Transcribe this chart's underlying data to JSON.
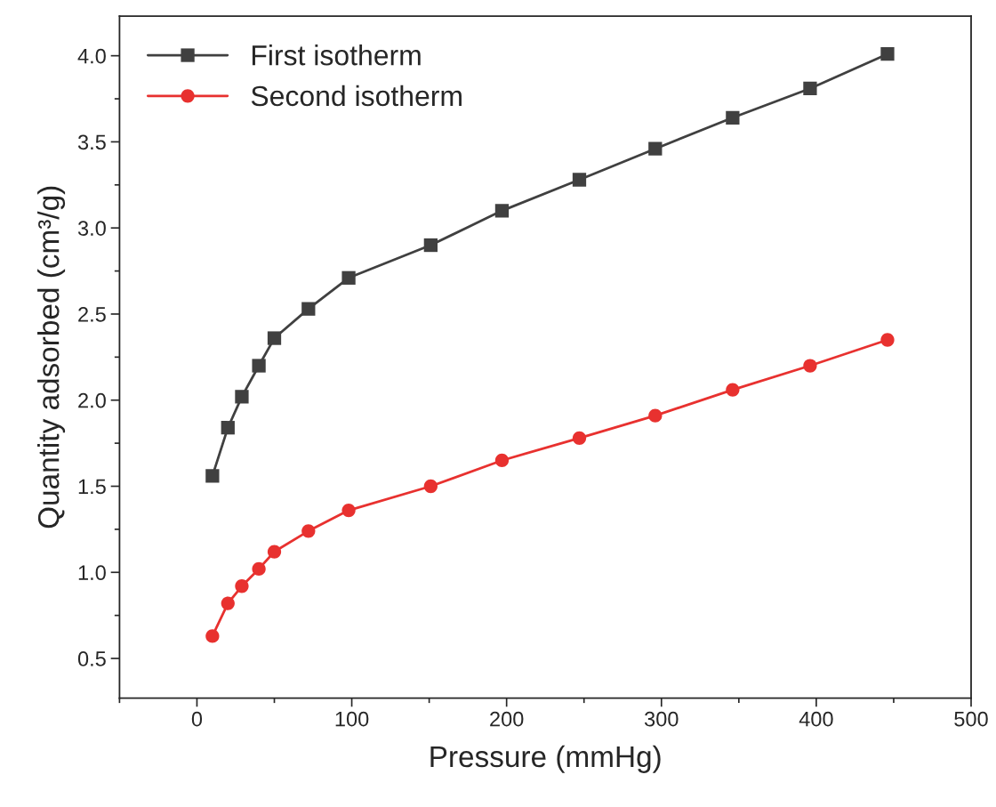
{
  "chart_data": {
    "type": "line",
    "xlabel": "Pressure (mmHg)",
    "ylabel": "Quantity adsorbed (cm³/g)",
    "xlim": [
      -50,
      500
    ],
    "xticks": [
      0,
      100,
      200,
      300,
      400,
      500
    ],
    "ylim": [
      0.27,
      4.23
    ],
    "yticks": [
      0.5,
      {
        "value": 1,
        "label": "1.0"
      },
      1.5,
      {
        "value": 2,
        "label": "2.0"
      },
      2.5,
      {
        "value": 3,
        "label": "3.0"
      },
      3.5,
      {
        "value": 4,
        "label": "4.0"
      }
    ],
    "x": [
      10,
      20,
      29,
      40,
      50,
      72,
      98,
      151,
      197,
      247,
      296,
      346,
      396,
      446
    ],
    "legend": "top left",
    "grid": false,
    "series": [
      {
        "name": "First isotherm",
        "color": "#404040",
        "marker": "square",
        "values": [
          1.56,
          1.84,
          2.02,
          2.2,
          2.36,
          2.53,
          2.71,
          2.9,
          3.1,
          3.28,
          3.46,
          3.64,
          3.81,
          4.01
        ]
      },
      {
        "name": "Second isotherm",
        "color": "#e8312f",
        "marker": "circle",
        "values": [
          0.63,
          0.82,
          0.92,
          1.02,
          1.12,
          1.24,
          1.36,
          1.5,
          1.65,
          1.78,
          1.91,
          2.06,
          2.2,
          2.35
        ]
      }
    ]
  }
}
